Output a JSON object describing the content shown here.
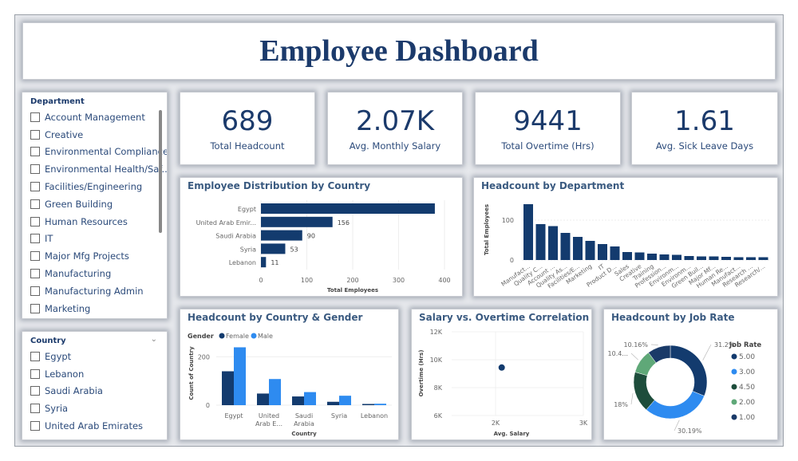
{
  "title": "Employee Dashboard",
  "colors": {
    "navy": "#133b6e",
    "blue": "#2e8bf0",
    "darkgreen": "#1d4d3b",
    "green": "#5fa878",
    "title": "#1b3a6b"
  },
  "department_slicer": {
    "label": "Department",
    "items": [
      "Account Management",
      "Creative",
      "Environmental Compliance",
      "Environmental Health/Saf...",
      "Facilities/Engineering",
      "Green Building",
      "Human Resources",
      "IT",
      "Major Mfg Projects",
      "Manufacturing",
      "Manufacturing Admin",
      "Marketing"
    ]
  },
  "country_slicer": {
    "label": "Country",
    "items": [
      "Egypt",
      "Lebanon",
      "Saudi Arabia",
      "Syria",
      "United Arab Emirates"
    ]
  },
  "kpis": [
    {
      "value": "689",
      "label": "Total Headcount"
    },
    {
      "value": "2.07K",
      "label": "Avg. Monthly Salary"
    },
    {
      "value": "9441",
      "label": "Total Overtime (Hrs)"
    },
    {
      "value": "1.61",
      "label": "Avg. Sick Leave Days"
    }
  ],
  "chart_data": [
    {
      "type": "bar",
      "orientation": "horizontal",
      "title": "Employee Distribution by Country",
      "categories": [
        "Egypt",
        "United Arab Emir...",
        "Saudi Arabia",
        "Syria",
        "Lebanon"
      ],
      "values": [
        379,
        156,
        90,
        53,
        11
      ],
      "data_labels": [
        "",
        "156",
        "90",
        "53",
        "11"
      ],
      "xlabel": "Total Employees",
      "xlim": [
        0,
        400
      ],
      "xticks": [
        "0",
        "100",
        "200",
        "300",
        "400"
      ]
    },
    {
      "type": "bar",
      "title": "Headcount by Department",
      "categories": [
        "Manufact...",
        "Quality C...",
        "Account ...",
        "Quality As...",
        "Facilities/E...",
        "Marketing",
        "IT",
        "Product D...",
        "Sales",
        "Creative",
        "Training",
        "Profession...",
        "Environm...",
        "Environm...",
        "Green Buil...",
        "Major Mf...",
        "Human Re...",
        "Manufact...",
        "Research ...",
        "Research/..."
      ],
      "values": [
        140,
        90,
        85,
        68,
        58,
        48,
        40,
        34,
        20,
        19,
        16,
        14,
        13,
        10,
        9,
        9,
        8,
        7,
        7,
        7
      ],
      "ylabel": "Total Employees",
      "ylim": [
        0,
        150
      ],
      "yticks": [
        "0",
        "100"
      ]
    },
    {
      "type": "bar",
      "title": "Headcount by Country & Gender",
      "legend_title": "Gender",
      "categories": [
        "Egypt",
        "United Arab E...",
        "Saudi Arabia",
        "Syria",
        "Lebanon"
      ],
      "series": [
        {
          "name": "Female",
          "values": [
            140,
            48,
            36,
            14,
            5
          ]
        },
        {
          "name": "Male",
          "values": [
            239,
            108,
            54,
            39,
            6
          ]
        }
      ],
      "xlabel": "Country",
      "ylabel": "Count of Country",
      "ylim": [
        0,
        280
      ],
      "yticks": [
        "0",
        "200"
      ],
      "legend": "top-left"
    },
    {
      "type": "scatter",
      "title": "Salary vs. Overtime Correlation",
      "x": [
        2070
      ],
      "y": [
        9441
      ],
      "xlabel": "Avg. Salary",
      "ylabel": "Overtime (Hrs)",
      "xlim": [
        1500,
        3000
      ],
      "ylim": [
        6000,
        12000
      ],
      "xticks": [
        "2K",
        "3K"
      ],
      "yticks": [
        "6K",
        "8K",
        "10K",
        "12K"
      ]
    },
    {
      "type": "pie",
      "donut": true,
      "title": "Headcount by Job Rate",
      "legend_title": "Job Rate",
      "categories": [
        "5.00",
        "3.00",
        "4.50",
        "2.00",
        "1.00"
      ],
      "values": [
        31.2,
        30.19,
        18,
        10.45,
        10.16
      ],
      "data_labels": [
        "31.2%",
        "30.19%",
        "18%",
        "10.4...",
        "10.16%"
      ],
      "colors": [
        "#133b6e",
        "#2e8bf0",
        "#1d4d3b",
        "#5fa878",
        "#1a3a68"
      ],
      "legend": "right"
    }
  ]
}
